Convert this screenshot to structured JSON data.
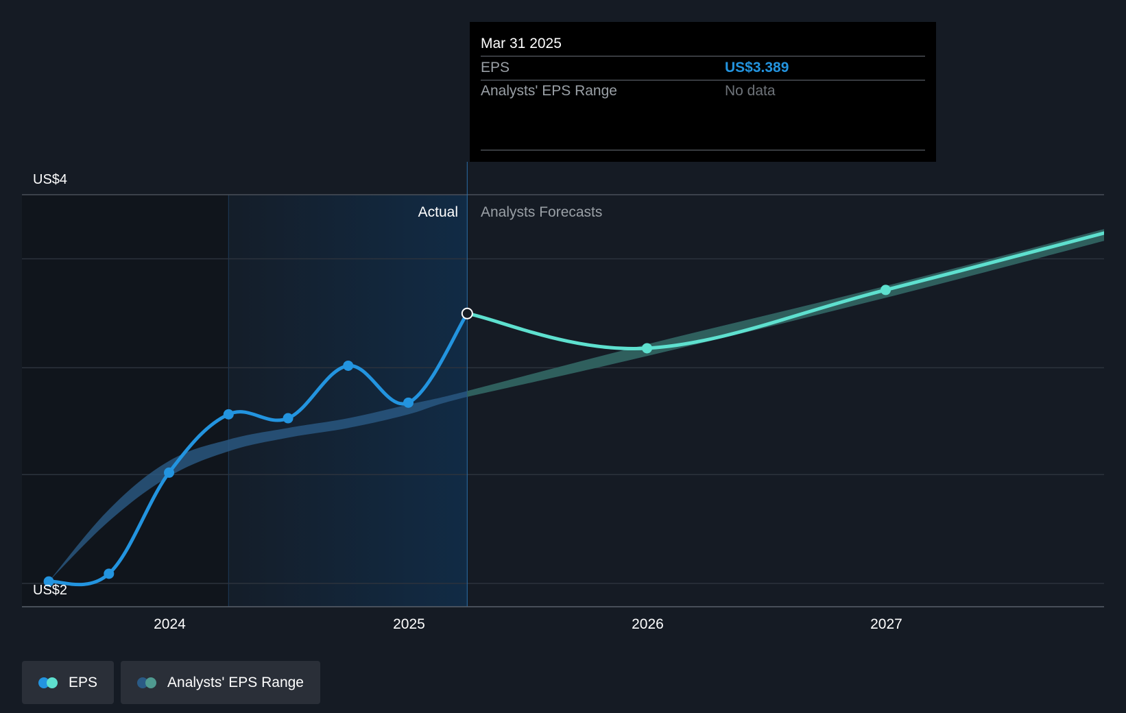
{
  "colors": {
    "background": "#151b24",
    "eps_actual": "#2394df",
    "eps_forecast": "#5ee0cf",
    "range_actual": "#2a5a85",
    "range_forecast": "#2f5f5d",
    "grid": "#2c333d",
    "axis": "#5a616b",
    "actual_region": "#112b45",
    "tooltip_bg": "#000000",
    "eps_value": "#2394df",
    "muted": "#9aa0a6",
    "nodata": "#6f747a"
  },
  "tooltip": {
    "date": "Mar 31 2025",
    "rows": [
      {
        "label": "EPS",
        "value": "US$3.389"
      },
      {
        "label": "Analysts' EPS Range",
        "value": "No data"
      }
    ]
  },
  "region_labels": {
    "actual": "Actual",
    "forecast": "Analysts Forecasts"
  },
  "legend": [
    {
      "label": "EPS",
      "icon": "eps-dots",
      "colors": [
        "#2394df",
        "#5ee0cf"
      ]
    },
    {
      "label": "Analysts' EPS Range",
      "icon": "range-dots",
      "colors": [
        "#2a5a85",
        "#4f9a90"
      ]
    }
  ],
  "chart_data": {
    "type": "line",
    "ylim": [
      2,
      4
    ],
    "xlim": [
      "2023-05-20",
      "2027-11-30"
    ],
    "y_tick_labels": [
      {
        "value": 4,
        "label": "US$4"
      },
      {
        "value": 2,
        "label": "US$2"
      }
    ],
    "y_gridlines": [
      2,
      2.56,
      3.11,
      3.67,
      4
    ],
    "x_ticks": [
      {
        "date": "2024-01-01",
        "label": "2024"
      },
      {
        "date": "2025-01-01",
        "label": "2025"
      },
      {
        "date": "2026-01-01",
        "label": "2026"
      },
      {
        "date": "2027-01-01",
        "label": "2027"
      }
    ],
    "actual_region_start": "2024-03-31",
    "divider_date": "2025-03-31",
    "series": [
      {
        "name": "EPS",
        "points": [
          {
            "date": "2023-06-30",
            "value": 2.01
          },
          {
            "date": "2023-09-30",
            "value": 2.05
          },
          {
            "date": "2023-12-31",
            "value": 2.57
          },
          {
            "date": "2024-03-31",
            "value": 2.87
          },
          {
            "date": "2024-06-30",
            "value": 2.85
          },
          {
            "date": "2024-09-30",
            "value": 3.12
          },
          {
            "date": "2024-12-31",
            "value": 2.93
          },
          {
            "date": "2025-03-31",
            "value": 3.389
          }
        ]
      },
      {
        "name": "EPS Forecast",
        "points": [
          {
            "date": "2025-03-31",
            "value": 3.389
          },
          {
            "date": "2025-12-31",
            "value": 3.21
          },
          {
            "date": "2026-12-31",
            "value": 3.51
          },
          {
            "date": "2027-12-31",
            "value": 3.83
          }
        ]
      }
    ],
    "range": {
      "name": "Analysts' EPS Range",
      "points": [
        {
          "date": "2023-06-30",
          "low": 2.01,
          "high": 2.01
        },
        {
          "date": "2023-09-30",
          "low": 2.32,
          "high": 2.38
        },
        {
          "date": "2023-12-31",
          "low": 2.55,
          "high": 2.63
        },
        {
          "date": "2024-03-31",
          "low": 2.68,
          "high": 2.74
        },
        {
          "date": "2024-06-30",
          "low": 2.75,
          "high": 2.8
        },
        {
          "date": "2024-09-30",
          "low": 2.8,
          "high": 2.85
        },
        {
          "date": "2024-12-31",
          "low": 2.87,
          "high": 2.92
        },
        {
          "date": "2025-03-31",
          "low": 2.96,
          "high": 2.99
        },
        {
          "date": "2025-12-31",
          "low": 3.17,
          "high": 3.23
        },
        {
          "date": "2026-12-31",
          "low": 3.47,
          "high": 3.53
        },
        {
          "date": "2027-12-31",
          "low": 3.79,
          "high": 3.85
        }
      ]
    }
  }
}
